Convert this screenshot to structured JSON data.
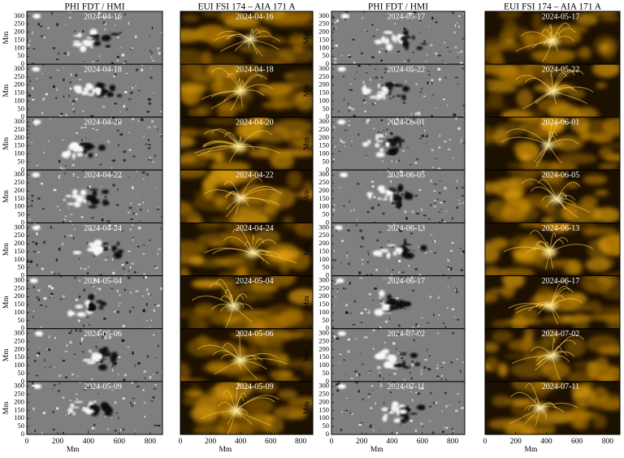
{
  "columns": [
    {
      "title": "PHI FDT / HMI",
      "kind": "magnetogram",
      "dates": [
        "2024-04-16",
        "2024-04-18",
        "2024-04-20",
        "2024-04-22",
        "2024-04-24",
        "2024-05-04",
        "2024-05-06",
        "2024-05-09"
      ]
    },
    {
      "title": "EUI FSI 174 – AIA 171 A",
      "kind": "euv",
      "dates": [
        "2024-04-16",
        "2024-04-18",
        "2024-04-20",
        "2024-04-22",
        "2024-04-24",
        "2024-05-04",
        "2024-05-06",
        "2024-05-09"
      ]
    },
    {
      "title": "PHI FDT / HMI",
      "kind": "magnetogram",
      "dates": [
        "2024-05-17",
        "2024-05-22",
        "2024-06-01",
        "2024-06-05",
        "2024-06-13",
        "2024-06-17",
        "2024-07-02",
        "2024-07-11"
      ]
    },
    {
      "title": "EUI FSI 174 – AIA 171 A",
      "kind": "euv",
      "dates": [
        "2024-05-17",
        "2024-05-22",
        "2024-06-01",
        "2024-06-05",
        "2024-06-13",
        "2024-06-17",
        "2024-07-02",
        "2024-07-11"
      ]
    }
  ],
  "ylabel": "Mm",
  "xlabel": "Mm",
  "ylim": [
    0,
    330
  ],
  "yticks": [
    0,
    50,
    100,
    150,
    200,
    250,
    300
  ],
  "xlim": [
    0,
    880
  ],
  "xticks": [
    0,
    200,
    400,
    600,
    800
  ]
}
